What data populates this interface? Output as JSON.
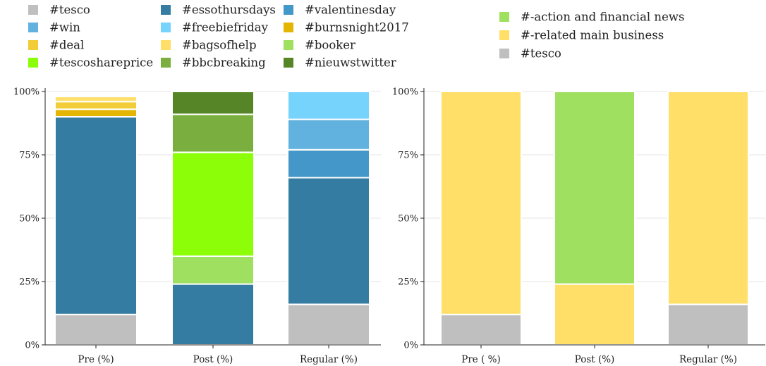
{
  "chart_data": [
    {
      "type": "bar",
      "stacked": true,
      "categories": [
        "Pre (%)",
        "Post (%)",
        "Regular (%)"
      ],
      "ylim": [
        0,
        100
      ],
      "yticks": [
        "0%",
        "25%",
        "50%",
        "75%",
        "100%"
      ],
      "grid": true,
      "legend_position": "top",
      "series": [
        {
          "name": "#tesco",
          "color": "#bfbfbf",
          "values": [
            12,
            0,
            16
          ]
        },
        {
          "name": "#essothursdays",
          "color": "#357ca2",
          "values": [
            78,
            24,
            50
          ]
        },
        {
          "name": "#valentinesday",
          "color": "#4498c9",
          "values": [
            0,
            0,
            11
          ]
        },
        {
          "name": "#win",
          "color": "#62b2df",
          "values": [
            0,
            0,
            12
          ]
        },
        {
          "name": "#freebiefriday",
          "color": "#76d3fc",
          "values": [
            0,
            0,
            11
          ]
        },
        {
          "name": "#burnsnight2017",
          "color": "#e3b504",
          "values": [
            3,
            0,
            0
          ]
        },
        {
          "name": "#deal",
          "color": "#f2cd38",
          "values": [
            3,
            0,
            0
          ]
        },
        {
          "name": "#bagsofhelp",
          "color": "#ffdf67",
          "values": [
            2,
            0,
            0
          ]
        },
        {
          "name": "#booker",
          "color": "#a0e060",
          "values": [
            0,
            11,
            0
          ]
        },
        {
          "name": "#tescoshareprice",
          "color": "#8cff08",
          "values": [
            0,
            41,
            0
          ]
        },
        {
          "name": "#bbcbreaking",
          "color": "#7aae3e",
          "values": [
            0,
            15,
            0
          ]
        },
        {
          "name": "#nieuwstwitter",
          "color": "#568527",
          "values": [
            0,
            9,
            0
          ]
        }
      ]
    },
    {
      "type": "bar",
      "stacked": true,
      "categories": [
        "Pre ( %)",
        "Post (%)",
        "Regular (%)"
      ],
      "ylim": [
        0,
        100
      ],
      "yticks": [
        "0%",
        "25%",
        "50%",
        "75%",
        "100%"
      ],
      "grid": true,
      "legend_position": "top",
      "series": [
        {
          "name": "#tesco",
          "color": "#bfbfbf",
          "values": [
            12,
            0,
            16
          ]
        },
        {
          "name": "#-related main business",
          "color": "#ffdf67",
          "values": [
            88,
            24,
            84
          ]
        },
        {
          "name": "#-action and financial news",
          "color": "#a0e060",
          "values": [
            0,
            76,
            0
          ]
        }
      ]
    }
  ],
  "legends": [
    {
      "columns": [
        [
          "#tesco",
          "#win",
          "#deal",
          "#tescoshareprice"
        ],
        [
          "#essothursdays",
          "#freebiefriday",
          "#bagsofhelp",
          "#bbcbreaking"
        ],
        [
          "#valentinesday",
          "#burnsnight2017",
          "#booker",
          "#nieuwstwitter"
        ]
      ]
    },
    {
      "columns": [
        [
          "#-action and financial news",
          "#-related main business",
          "#tesco"
        ]
      ]
    }
  ]
}
